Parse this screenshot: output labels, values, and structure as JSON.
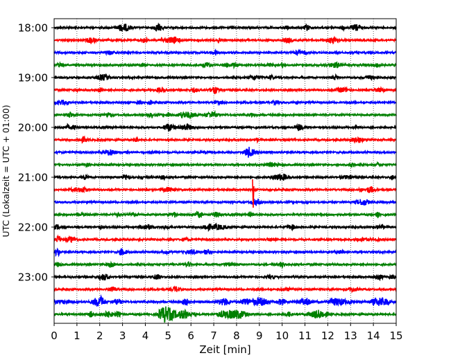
{
  "chart_data": {
    "type": "line",
    "title": "",
    "xlabel": "Zeit  [min]",
    "ylabel": "UTC (Lokalzeit = UTC + 01:00)",
    "xlim": [
      0,
      15
    ],
    "x_ticks": [
      "0",
      "1",
      "2",
      "3",
      "4",
      "5",
      "6",
      "7",
      "8",
      "9",
      "10",
      "11",
      "12",
      "13",
      "14",
      "15"
    ],
    "y_tick_labels": [
      "18:00",
      "19:00",
      "20:00",
      "21:00",
      "22:00",
      "23:00"
    ],
    "grid": "vertical dotted at every minute",
    "trace_interval_min": 15,
    "traces": [
      {
        "start": "18:00",
        "color": "#000000"
      },
      {
        "start": "18:15",
        "color": "#ff0000"
      },
      {
        "start": "18:30",
        "color": "#0000ff"
      },
      {
        "start": "18:45",
        "color": "#008000"
      },
      {
        "start": "19:00",
        "color": "#000000"
      },
      {
        "start": "19:15",
        "color": "#ff0000"
      },
      {
        "start": "19:30",
        "color": "#0000ff"
      },
      {
        "start": "19:45",
        "color": "#008000"
      },
      {
        "start": "20:00",
        "color": "#000000"
      },
      {
        "start": "20:15",
        "color": "#ff0000"
      },
      {
        "start": "20:30",
        "color": "#0000ff"
      },
      {
        "start": "20:45",
        "color": "#008000"
      },
      {
        "start": "21:00",
        "color": "#000000"
      },
      {
        "start": "21:15",
        "color": "#ff0000"
      },
      {
        "start": "21:30",
        "color": "#0000ff"
      },
      {
        "start": "21:45",
        "color": "#008000"
      },
      {
        "start": "22:00",
        "color": "#000000"
      },
      {
        "start": "22:15",
        "color": "#ff0000"
      },
      {
        "start": "22:30",
        "color": "#0000ff"
      },
      {
        "start": "22:45",
        "color": "#008000"
      },
      {
        "start": "23:00",
        "color": "#000000"
      },
      {
        "start": "23:15",
        "color": "#ff0000"
      },
      {
        "start": "23:30",
        "color": "#0000ff"
      },
      {
        "start": "23:45",
        "color": "#008000"
      }
    ],
    "notable_events": [
      {
        "trace_start": "21:15",
        "time_min": 8.7,
        "description": "large spike"
      }
    ]
  }
}
